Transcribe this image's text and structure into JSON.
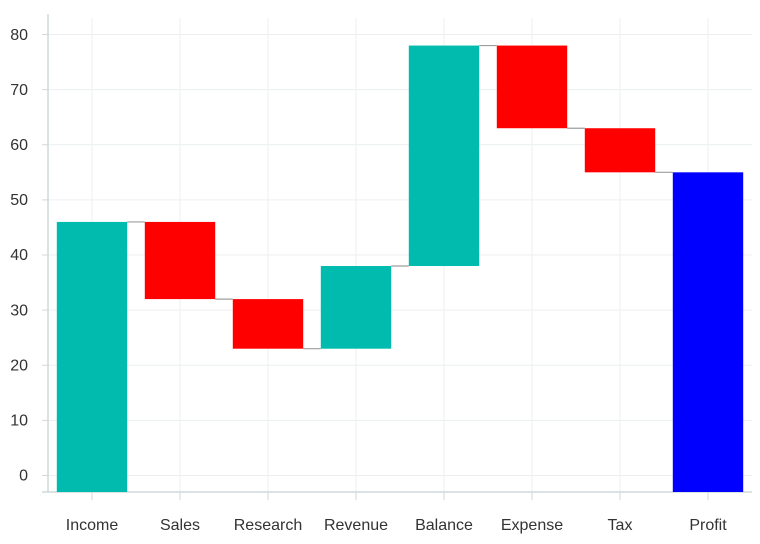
{
  "chart_data": {
    "type": "waterfall",
    "title": "",
    "xlabel": "",
    "ylabel": "",
    "ylim": [
      -3,
      83
    ],
    "yticks": [
      0,
      10,
      20,
      30,
      40,
      50,
      60,
      70,
      80
    ],
    "ytick_labels": [
      "0",
      "10",
      "20",
      "30",
      "40",
      "50",
      "60",
      "70",
      "80"
    ],
    "grid": true,
    "categories": [
      "Income",
      "Sales",
      "Research",
      "Revenue",
      "Balance",
      "Expense",
      "Tax",
      "Profit"
    ],
    "bars": [
      {
        "label": "Income",
        "start": 0,
        "end": 46,
        "kind": "increase"
      },
      {
        "label": "Sales",
        "start": 46,
        "end": 32,
        "kind": "decrease"
      },
      {
        "label": "Research",
        "start": 32,
        "end": 23,
        "kind": "decrease"
      },
      {
        "label": "Revenue",
        "start": 23,
        "end": 38,
        "kind": "increase"
      },
      {
        "label": "Balance",
        "start": 38,
        "end": 78,
        "kind": "increase"
      },
      {
        "label": "Expense",
        "start": 78,
        "end": 63,
        "kind": "decrease"
      },
      {
        "label": "Tax",
        "start": 63,
        "end": 55,
        "kind": "decrease"
      },
      {
        "label": "Profit",
        "start": 0,
        "end": 55,
        "kind": "total"
      }
    ],
    "colors": {
      "increase": "#00BBAE",
      "decrease": "#FF0000",
      "total": "#0000FF",
      "connector": "#9E9E9E",
      "grid": "#ECEFF1",
      "axis": "#CFD8DC"
    }
  }
}
